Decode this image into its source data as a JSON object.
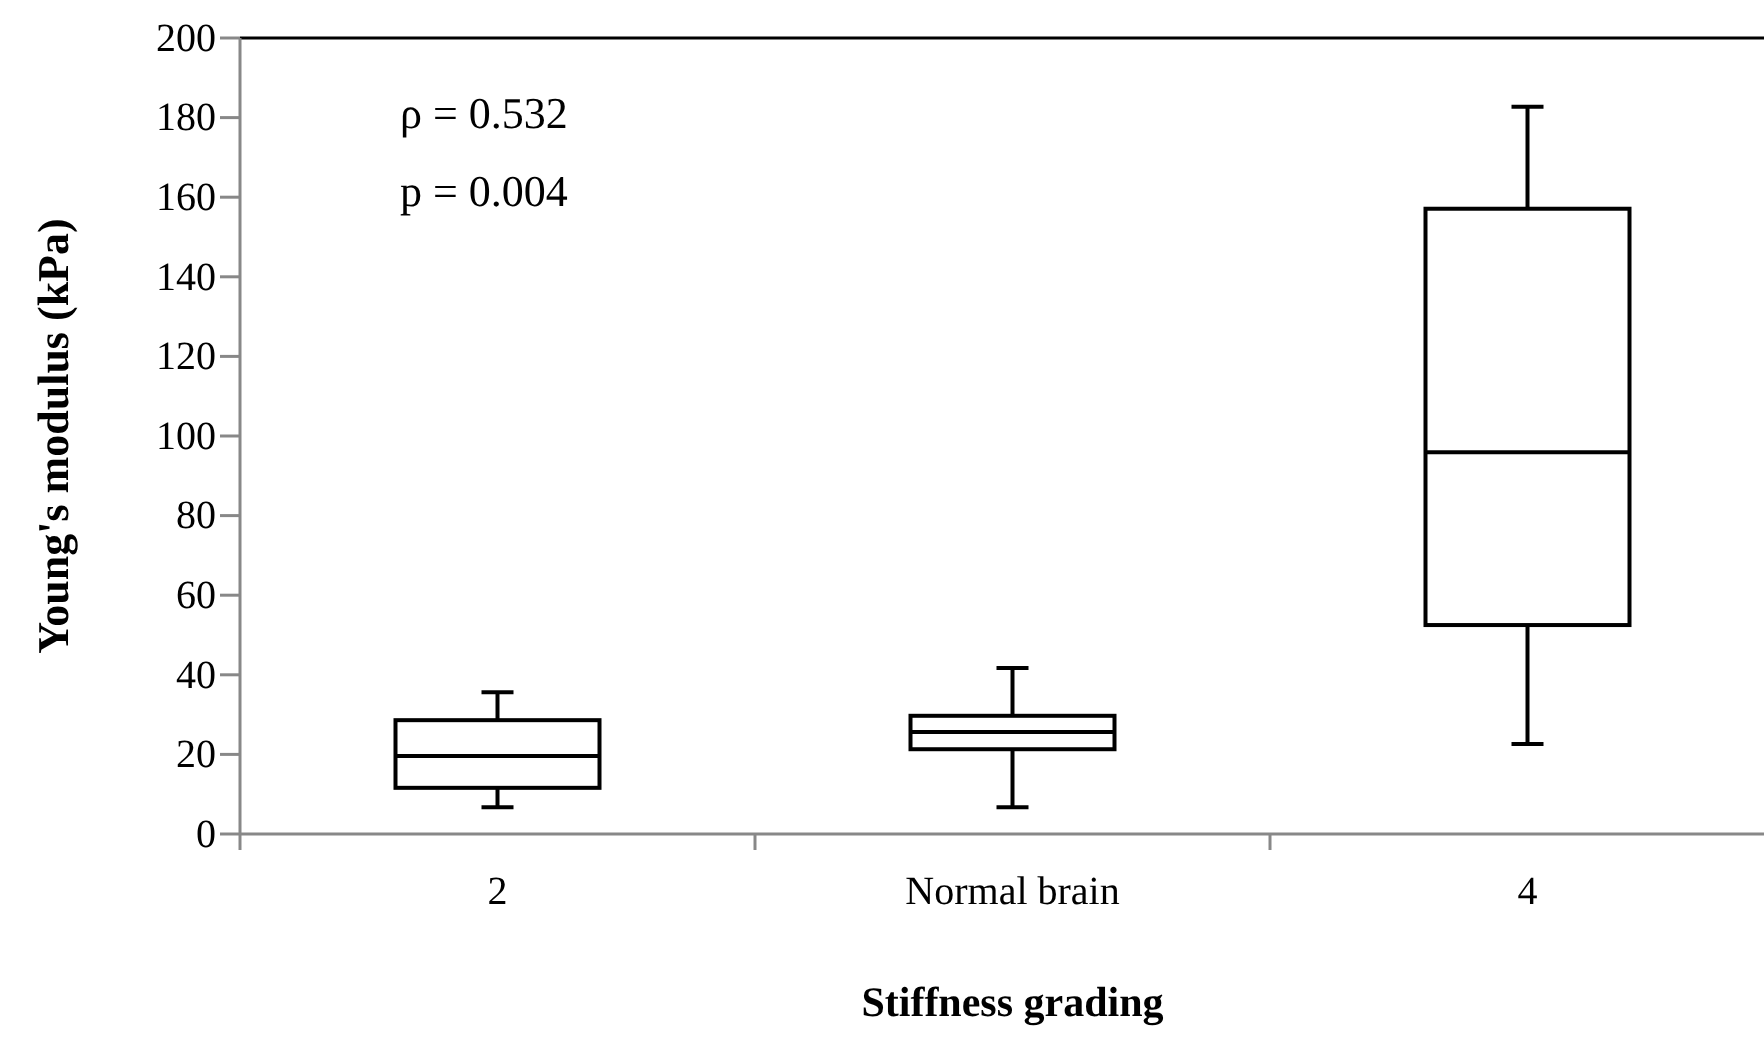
{
  "chart_data": {
    "type": "box",
    "xlabel": "Stiffness grading",
    "ylabel": "Young's modulus (kPa)",
    "categories": [
      "2",
      "Normal brain",
      "4"
    ],
    "boxes": [
      {
        "low": 6.7,
        "q1": 11.6,
        "median": 19.6,
        "q3": 28.6,
        "high": 35.6
      },
      {
        "low": 6.7,
        "q1": 21.3,
        "median": 25.6,
        "q3": 29.7,
        "high": 41.7
      },
      {
        "low": 22.6,
        "q1": 52.5,
        "median": 95.9,
        "q3": 157.1,
        "high": 182.7
      }
    ],
    "ylim": [
      0,
      200
    ],
    "yticks": [
      0,
      20,
      40,
      60,
      80,
      100,
      120,
      140,
      160,
      180,
      200
    ],
    "annotations": [
      "ρ = 0.532",
      "p = 0.004"
    ]
  }
}
